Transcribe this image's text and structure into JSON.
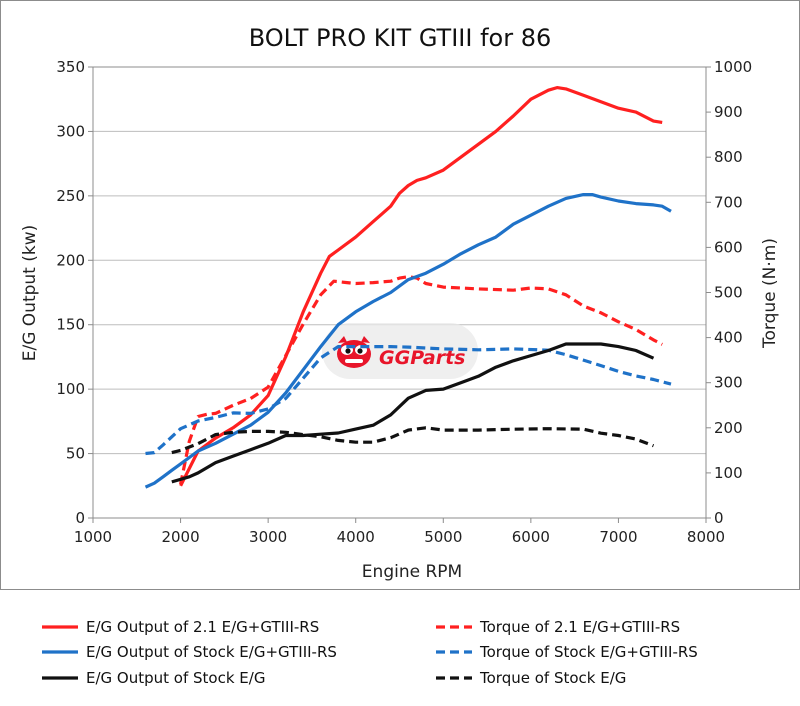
{
  "chart_data": {
    "type": "line",
    "title": "BOLT PRO KIT GTIII for 86",
    "xlabel": "Engine RPM",
    "ylabel_left": "E/G Output (kw)",
    "ylabel_right": "Torque (N·m)",
    "xlim": [
      1000,
      8000
    ],
    "ylim_left": [
      0,
      350
    ],
    "ylim_right": [
      0,
      1000
    ],
    "xticks": [
      "1000",
      "2000",
      "3000",
      "4000",
      "5000",
      "6000",
      "7000",
      "8000"
    ],
    "yticks_left": [
      "0",
      "50",
      "100",
      "150",
      "200",
      "250",
      "300",
      "350"
    ],
    "yticks_right": [
      "0",
      "100",
      "200",
      "300",
      "400",
      "500",
      "600",
      "700",
      "800",
      "900",
      "1000"
    ],
    "grid": true,
    "legend_position": "bottom",
    "watermark": "GGParts",
    "series": [
      {
        "name": "E/G Output of 2.1 E/G+GTIII-RS",
        "color": "#ff2020",
        "dash": "solid",
        "axis": "left",
        "points": [
          [
            2000,
            25
          ],
          [
            2200,
            52
          ],
          [
            2400,
            62
          ],
          [
            2600,
            70
          ],
          [
            2800,
            80
          ],
          [
            3000,
            95
          ],
          [
            3200,
            125
          ],
          [
            3400,
            160
          ],
          [
            3600,
            190
          ],
          [
            3700,
            203
          ],
          [
            3800,
            208
          ],
          [
            4000,
            218
          ],
          [
            4200,
            230
          ],
          [
            4400,
            242
          ],
          [
            4500,
            252
          ],
          [
            4600,
            258
          ],
          [
            4700,
            262
          ],
          [
            4800,
            264
          ],
          [
            5000,
            270
          ],
          [
            5200,
            280
          ],
          [
            5400,
            290
          ],
          [
            5600,
            300
          ],
          [
            5800,
            312
          ],
          [
            6000,
            325
          ],
          [
            6200,
            332
          ],
          [
            6300,
            334
          ],
          [
            6400,
            333
          ],
          [
            6600,
            328
          ],
          [
            6800,
            323
          ],
          [
            7000,
            318
          ],
          [
            7200,
            315
          ],
          [
            7400,
            308
          ],
          [
            7500,
            307
          ]
        ]
      },
      {
        "name": "Torque of 2.1 E/G+GTIII-RS",
        "color": "#ff2020",
        "dash": "dashed",
        "axis": "right",
        "points": [
          [
            2000,
            75
          ],
          [
            2100,
            170
          ],
          [
            2200,
            225
          ],
          [
            2300,
            230
          ],
          [
            2400,
            232
          ],
          [
            2600,
            250
          ],
          [
            2800,
            265
          ],
          [
            3000,
            290
          ],
          [
            3200,
            360
          ],
          [
            3400,
            430
          ],
          [
            3600,
            495
          ],
          [
            3750,
            525
          ],
          [
            3900,
            522
          ],
          [
            4000,
            520
          ],
          [
            4200,
            522
          ],
          [
            4400,
            525
          ],
          [
            4500,
            532
          ],
          [
            4600,
            535
          ],
          [
            4700,
            532
          ],
          [
            4800,
            520
          ],
          [
            5000,
            512
          ],
          [
            5400,
            508
          ],
          [
            5800,
            505
          ],
          [
            6000,
            510
          ],
          [
            6200,
            508
          ],
          [
            6400,
            495
          ],
          [
            6600,
            470
          ],
          [
            6800,
            455
          ],
          [
            7000,
            435
          ],
          [
            7200,
            418
          ],
          [
            7400,
            395
          ],
          [
            7500,
            385
          ]
        ]
      },
      {
        "name": "E/G Output of Stock E/G+GTIII-RS",
        "color": "#1f72c8",
        "dash": "solid",
        "axis": "left",
        "points": [
          [
            1600,
            24
          ],
          [
            1700,
            27
          ],
          [
            1800,
            32
          ],
          [
            1900,
            37
          ],
          [
            2000,
            42
          ],
          [
            2200,
            52
          ],
          [
            2400,
            58
          ],
          [
            2600,
            65
          ],
          [
            2800,
            72
          ],
          [
            3000,
            82
          ],
          [
            3200,
            97
          ],
          [
            3400,
            115
          ],
          [
            3600,
            133
          ],
          [
            3800,
            150
          ],
          [
            4000,
            160
          ],
          [
            4200,
            168
          ],
          [
            4400,
            175
          ],
          [
            4600,
            185
          ],
          [
            4800,
            190
          ],
          [
            5000,
            197
          ],
          [
            5200,
            205
          ],
          [
            5400,
            212
          ],
          [
            5600,
            218
          ],
          [
            5800,
            228
          ],
          [
            6000,
            235
          ],
          [
            6200,
            242
          ],
          [
            6400,
            248
          ],
          [
            6600,
            251
          ],
          [
            6700,
            251
          ],
          [
            6800,
            249
          ],
          [
            7000,
            246
          ],
          [
            7200,
            244
          ],
          [
            7400,
            243
          ],
          [
            7500,
            242
          ],
          [
            7600,
            238
          ]
        ]
      },
      {
        "name": "Torque of Stock E/G+GTIII-RS",
        "color": "#1f72c8",
        "dash": "dashed",
        "axis": "right",
        "points": [
          [
            1600,
            143
          ],
          [
            1700,
            145
          ],
          [
            1800,
            162
          ],
          [
            2000,
            198
          ],
          [
            2200,
            215
          ],
          [
            2400,
            223
          ],
          [
            2600,
            233
          ],
          [
            2800,
            232
          ],
          [
            3000,
            242
          ],
          [
            3200,
            265
          ],
          [
            3400,
            310
          ],
          [
            3600,
            355
          ],
          [
            3800,
            380
          ],
          [
            4000,
            380
          ],
          [
            4200,
            380
          ],
          [
            4400,
            380
          ],
          [
            4600,
            379
          ],
          [
            5000,
            375
          ],
          [
            5400,
            373
          ],
          [
            5800,
            375
          ],
          [
            6200,
            372
          ],
          [
            6400,
            362
          ],
          [
            6600,
            350
          ],
          [
            6800,
            338
          ],
          [
            7000,
            325
          ],
          [
            7200,
            315
          ],
          [
            7400,
            307
          ],
          [
            7600,
            297
          ]
        ]
      },
      {
        "name": "E/G Output of Stock E/G",
        "color": "#111111",
        "dash": "solid",
        "axis": "left",
        "points": [
          [
            1900,
            28
          ],
          [
            2100,
            32
          ],
          [
            2200,
            35
          ],
          [
            2400,
            43
          ],
          [
            2600,
            48
          ],
          [
            2800,
            53
          ],
          [
            3000,
            58
          ],
          [
            3200,
            64
          ],
          [
            3400,
            64
          ],
          [
            3600,
            65
          ],
          [
            3800,
            66
          ],
          [
            4000,
            69
          ],
          [
            4200,
            72
          ],
          [
            4400,
            80
          ],
          [
            4600,
            93
          ],
          [
            4800,
            99
          ],
          [
            5000,
            100
          ],
          [
            5200,
            105
          ],
          [
            5400,
            110
          ],
          [
            5600,
            117
          ],
          [
            5800,
            122
          ],
          [
            6000,
            126
          ],
          [
            6200,
            130
          ],
          [
            6400,
            135
          ],
          [
            6600,
            135
          ],
          [
            6800,
            135
          ],
          [
            7000,
            133
          ],
          [
            7200,
            130
          ],
          [
            7400,
            124
          ]
        ]
      },
      {
        "name": "Torque of Stock E/G",
        "color": "#111111",
        "dash": "dashed",
        "axis": "right",
        "points": [
          [
            1900,
            145
          ],
          [
            2000,
            150
          ],
          [
            2200,
            165
          ],
          [
            2400,
            185
          ],
          [
            2600,
            190
          ],
          [
            2800,
            192
          ],
          [
            3000,
            192
          ],
          [
            3200,
            190
          ],
          [
            3400,
            185
          ],
          [
            3600,
            180
          ],
          [
            3800,
            172
          ],
          [
            4000,
            168
          ],
          [
            4200,
            168
          ],
          [
            4400,
            178
          ],
          [
            4600,
            195
          ],
          [
            4800,
            200
          ],
          [
            5000,
            195
          ],
          [
            5400,
            195
          ],
          [
            5800,
            197
          ],
          [
            6200,
            198
          ],
          [
            6600,
            197
          ],
          [
            6800,
            188
          ],
          [
            7000,
            183
          ],
          [
            7200,
            175
          ],
          [
            7400,
            160
          ]
        ]
      }
    ]
  }
}
